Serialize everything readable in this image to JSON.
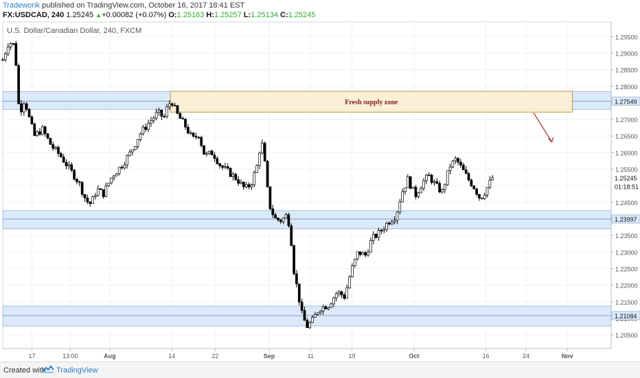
{
  "header": {
    "author": "Tradewonk",
    "published": "published on TradingView.com, October 16, 2017 18:41 EST",
    "symbol": "FX:USDCAD, 240",
    "last": "1.25245",
    "change": "+0.00082 (+0.07%)",
    "o_label": "O:",
    "o": "1.25163",
    "h_label": "H:",
    "h": "1.25257",
    "l_label": "L:",
    "l": "1.25134",
    "c_label": "C:",
    "c": "1.25245"
  },
  "footer": {
    "created": "Created with",
    "brand": "TradingView"
  },
  "colors": {
    "zone_fill": "#dce9f8",
    "zone_border": "#9fc0e6",
    "supply_fill": "#fbf0d4",
    "supply_border": "#b89a4a",
    "supply_text": "#8b1a1a",
    "arrow": "#a52a2a",
    "candle_up": "#ffffff",
    "candle_down": "#000000",
    "wick": "#000000"
  },
  "chart_data": {
    "type": "candlestick",
    "title": "U.S. Dollar/Canadian Dollar, 240, FXCM",
    "ylim": [
      1.2009,
      1.2994
    ],
    "y_ticks": [
      "1.29500",
      "1.29000",
      "1.28500",
      "1.28000",
      "1.27500",
      "1.27000",
      "1.26500",
      "1.26000",
      "1.25500",
      "1.25000",
      "1.24500",
      "1.24000",
      "1.23500",
      "1.23000",
      "1.22500",
      "1.22000",
      "1.21500",
      "1.21000",
      "1.20500"
    ],
    "x_ticks": [
      "17",
      "13:00",
      "Aug",
      "14",
      "22",
      "Sep",
      "11",
      "19",
      "Oct",
      "16",
      "24",
      "Nov"
    ],
    "price_labels": [
      {
        "label": "1.27549",
        "value": 1.27549
      },
      {
        "label": "1.25245",
        "value": 1.25245
      },
      {
        "label": "01:18:51",
        "value": 1.2498
      },
      {
        "label": "1.23997",
        "value": 1.23997
      },
      {
        "label": "1.21084",
        "value": 1.21084
      }
    ],
    "zones": [
      {
        "name": "resistance",
        "top": 1.2784,
        "bottom": 1.273,
        "line": 1.27549
      },
      {
        "name": "support",
        "top": 1.2425,
        "bottom": 1.237,
        "line": 1.23997
      },
      {
        "name": "support-low",
        "top": 1.2137,
        "bottom": 1.2077,
        "line": 1.21084
      }
    ],
    "supply_zone": {
      "label": "Fresh supply zone",
      "top": 1.2785,
      "bottom": 1.2722,
      "x_start": 0.2755,
      "x_end": 0.9363
    },
    "arrow": {
      "x1": 0.8725,
      "y1": 1.272,
      "x2": 0.9025,
      "y2": 1.2632
    },
    "path": [
      [
        0.0,
        1.288
      ],
      [
        0.01,
        1.2935
      ],
      [
        0.018,
        1.2925
      ],
      [
        0.022,
        1.2865
      ],
      [
        0.024,
        1.2755
      ],
      [
        0.03,
        1.273
      ],
      [
        0.036,
        1.2762
      ],
      [
        0.044,
        1.27
      ],
      [
        0.052,
        1.265
      ],
      [
        0.065,
        1.267
      ],
      [
        0.08,
        1.262
      ],
      [
        0.095,
        1.259
      ],
      [
        0.11,
        1.255
      ],
      [
        0.125,
        1.251
      ],
      [
        0.137,
        1.2455
      ],
      [
        0.145,
        1.2445
      ],
      [
        0.155,
        1.249
      ],
      [
        0.165,
        1.2475
      ],
      [
        0.18,
        1.253
      ],
      [
        0.195,
        1.256
      ],
      [
        0.21,
        1.26
      ],
      [
        0.225,
        1.2655
      ],
      [
        0.24,
        1.269
      ],
      [
        0.255,
        1.272
      ],
      [
        0.265,
        1.2705
      ],
      [
        0.272,
        1.2745
      ],
      [
        0.278,
        1.2755
      ],
      [
        0.285,
        1.272
      ],
      [
        0.3,
        1.268
      ],
      [
        0.312,
        1.264
      ],
      [
        0.322,
        1.2655
      ],
      [
        0.332,
        1.259
      ],
      [
        0.345,
        1.26
      ],
      [
        0.358,
        1.256
      ],
      [
        0.372,
        1.254
      ],
      [
        0.385,
        1.252
      ],
      [
        0.398,
        1.249
      ],
      [
        0.408,
        1.2505
      ],
      [
        0.418,
        1.256
      ],
      [
        0.425,
        1.264
      ],
      [
        0.43,
        1.258
      ],
      [
        0.435,
        1.249
      ],
      [
        0.44,
        1.243
      ],
      [
        0.448,
        1.24
      ],
      [
        0.458,
        1.2395
      ],
      [
        0.466,
        1.241
      ],
      [
        0.472,
        1.238
      ],
      [
        0.478,
        1.225
      ],
      [
        0.485,
        1.218
      ],
      [
        0.492,
        1.211
      ],
      [
        0.5,
        1.2075
      ],
      [
        0.51,
        1.2095
      ],
      [
        0.52,
        1.213
      ],
      [
        0.535,
        1.214
      ],
      [
        0.55,
        1.218
      ],
      [
        0.562,
        1.2165
      ],
      [
        0.572,
        1.224
      ],
      [
        0.584,
        1.23
      ],
      [
        0.596,
        1.229
      ],
      [
        0.607,
        1.234
      ],
      [
        0.62,
        1.236
      ],
      [
        0.633,
        1.239
      ],
      [
        0.646,
        1.241
      ],
      [
        0.656,
        1.248
      ],
      [
        0.666,
        1.252
      ],
      [
        0.678,
        1.247
      ],
      [
        0.69,
        1.251
      ],
      [
        0.7,
        1.253
      ],
      [
        0.712,
        1.25
      ],
      [
        0.722,
        1.248
      ],
      [
        0.735,
        1.256
      ],
      [
        0.745,
        1.258
      ],
      [
        0.755,
        1.255
      ],
      [
        0.765,
        1.252
      ],
      [
        0.775,
        1.2495
      ],
      [
        0.785,
        1.246
      ],
      [
        0.795,
        1.249
      ],
      [
        0.805,
        1.2525
      ]
    ]
  }
}
